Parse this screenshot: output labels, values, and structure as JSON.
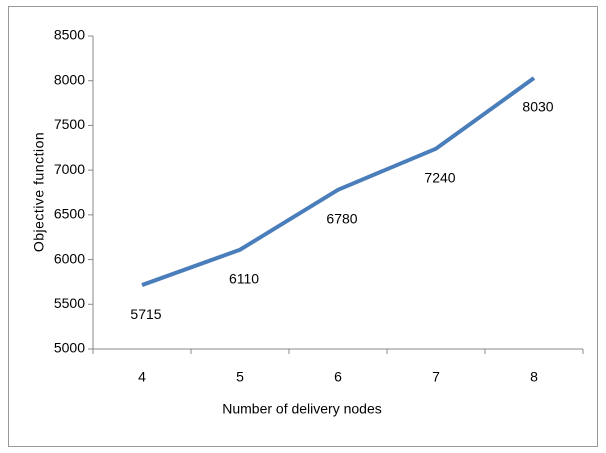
{
  "chart_data": {
    "type": "line",
    "x_label": "Number of delivery nodes",
    "y_label": "Objective function",
    "categories": [
      "4",
      "5",
      "6",
      "7",
      "8"
    ],
    "series": [
      {
        "name": "Objective function",
        "color": "#4a7ebb",
        "values": [
          5715,
          6110,
          6780,
          7240,
          8030
        ]
      }
    ],
    "ylim": [
      5000,
      8500
    ],
    "yticks": [
      5000,
      5500,
      6000,
      6500,
      7000,
      7500,
      8000,
      8500
    ],
    "grid": false,
    "legend": false,
    "data_labels": true
  }
}
